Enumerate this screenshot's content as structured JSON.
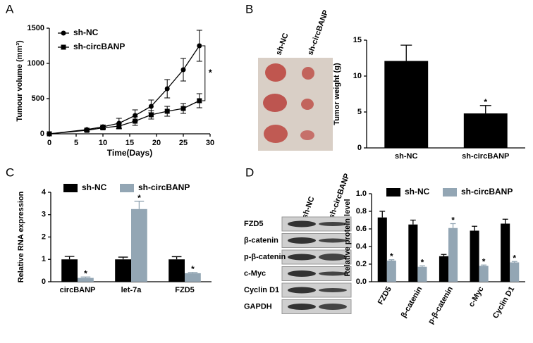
{
  "panel_labels": [
    "A",
    "B",
    "C",
    "D"
  ],
  "tumor_photo": {
    "labels": [
      "sh-NC",
      "sh-circBANP"
    ]
  },
  "blot": {
    "lanes": [
      "sh-NC",
      "sh-circBANP"
    ],
    "rows": [
      "FZD5",
      "β-catenin",
      "p-β-catenin",
      "c-Myc",
      "Cyclin D1",
      "GAPDH"
    ]
  },
  "chart_data": [
    {
      "type": "line",
      "xlabel": "Time(Days)",
      "ylabel": "Tumour volume (mm³)",
      "annotation": "*",
      "x": [
        0,
        7,
        10,
        13,
        16,
        19,
        22,
        25,
        28
      ],
      "series": [
        {
          "name": "sh-NC",
          "color": "#000000",
          "marker": "circle",
          "values": [
            0,
            60,
            100,
            150,
            260,
            390,
            640,
            910,
            1250
          ],
          "errors": [
            0,
            20,
            25,
            70,
            80,
            90,
            130,
            160,
            220
          ]
        },
        {
          "name": "sh-circBANP",
          "color": "#000000",
          "marker": "square",
          "values": [
            0,
            50,
            85,
            110,
            180,
            270,
            320,
            360,
            470
          ],
          "errors": [
            0,
            15,
            20,
            40,
            60,
            60,
            70,
            70,
            100
          ]
        }
      ],
      "xlim": [
        0,
        30
      ],
      "xticks": [
        0,
        5,
        10,
        15,
        20,
        25,
        30
      ],
      "ylim": [
        0,
        1500
      ],
      "yticks": [
        0,
        500,
        1000,
        1500
      ]
    },
    {
      "type": "bar",
      "ylabel": "Tumor weight (g)",
      "categories": [
        "sh-NC",
        "sh-circBANP"
      ],
      "values": [
        12.1,
        4.8
      ],
      "errors": [
        2.2,
        1.1
      ],
      "marks": [
        null,
        "*"
      ],
      "color": "#000000",
      "ylim": [
        0,
        15
      ],
      "yticks": [
        0,
        5,
        10,
        15
      ]
    },
    {
      "type": "bar",
      "ylabel": "Relative RNA expression",
      "categories": [
        "circBANP",
        "let-7a",
        "FZD5"
      ],
      "series": [
        {
          "name": "sh-NC",
          "color": "#000000",
          "values": [
            1,
            1,
            1
          ],
          "errors": [
            0.13,
            0.1,
            0.12
          ]
        },
        {
          "name": "sh-circBANP",
          "color": "#93a6b4",
          "values": [
            0.17,
            3.25,
            0.38
          ],
          "errors": [
            0.04,
            0.35,
            0.04
          ],
          "marks": [
            "*",
            "*",
            "*"
          ]
        }
      ],
      "ylim": [
        0,
        4
      ],
      "yticks": [
        0,
        1,
        2,
        3,
        4
      ]
    },
    {
      "type": "bar",
      "ylabel": "Relative protein level",
      "categories": [
        "FZD5",
        "β-catenin",
        "p-β-catenin",
        "c-Myc",
        "Cyclin D1"
      ],
      "series": [
        {
          "name": "sh-NC",
          "color": "#000000",
          "values": [
            0.73,
            0.65,
            0.29,
            0.58,
            0.66
          ],
          "errors": [
            0.07,
            0.05,
            0.02,
            0.05,
            0.05
          ]
        },
        {
          "name": "sh-circBANP",
          "color": "#93a6b4",
          "values": [
            0.24,
            0.17,
            0.61,
            0.18,
            0.22
          ],
          "errors": [
            0.01,
            0.01,
            0.05,
            0.01,
            0.01
          ],
          "marks": [
            "*",
            "*",
            "*",
            "*",
            "*"
          ]
        }
      ],
      "ylim": [
        0,
        1
      ],
      "yticks": [
        {
          "value": 0,
          "label": "0.0"
        },
        0.2,
        0.4,
        0.6,
        0.8,
        {
          "value": 1,
          "label": "1.0"
        }
      ]
    }
  ]
}
